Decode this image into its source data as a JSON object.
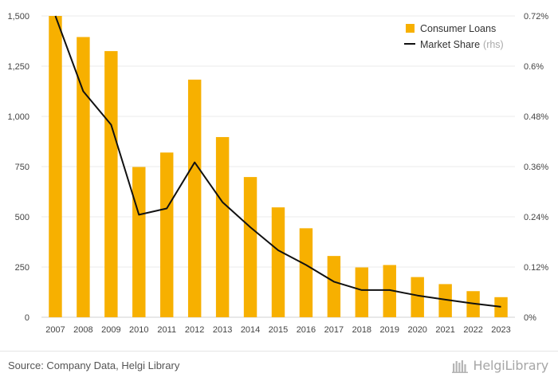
{
  "chart_data": {
    "type": "bar",
    "categories": [
      "2007",
      "2008",
      "2009",
      "2010",
      "2011",
      "2012",
      "2013",
      "2014",
      "2015",
      "2016",
      "2017",
      "2018",
      "2019",
      "2020",
      "2021",
      "2022",
      "2023"
    ],
    "series": [
      {
        "name": "Consumer Loans",
        "type": "bar",
        "axis": "left",
        "color": "#f7b000",
        "values": [
          1500,
          1395,
          1325,
          748,
          820,
          1183,
          897,
          698,
          547,
          443,
          305,
          248,
          260,
          200,
          165,
          130,
          100
        ]
      },
      {
        "name": "Market Share",
        "name_suffix": "(rhs)",
        "type": "line",
        "axis": "right",
        "color": "#111111",
        "values": [
          0.72,
          0.54,
          0.46,
          0.245,
          0.26,
          0.37,
          0.275,
          0.215,
          0.16,
          0.125,
          0.085,
          0.065,
          0.065,
          0.052,
          0.042,
          0.033,
          0.025
        ]
      }
    ],
    "yaxis_left": {
      "ylim": [
        0,
        1500
      ],
      "ticks": [
        0,
        250,
        500,
        750,
        1000,
        1250,
        1500
      ],
      "tick_labels": [
        "0",
        "250",
        "500",
        "750",
        "1,000",
        "1,250",
        "1,500"
      ]
    },
    "yaxis_right": {
      "ylim": [
        0,
        0.72
      ],
      "ticks": [
        0,
        0.12,
        0.24,
        0.36,
        0.48,
        0.6,
        0.72
      ],
      "tick_labels": [
        "0%",
        "0.12%",
        "0.24%",
        "0.36%",
        "0.48%",
        "0.6%",
        "0.72%"
      ]
    },
    "grid": true,
    "legend_position": "top-right"
  },
  "footer": {
    "source": "Source: Company Data, Helgi Library",
    "logo_text": "HelgiLibrary"
  }
}
